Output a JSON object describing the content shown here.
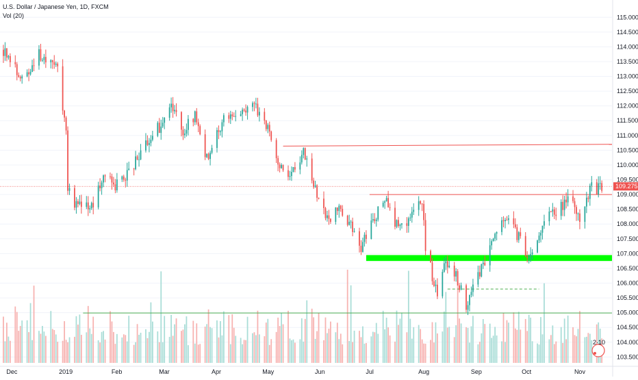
{
  "header": {
    "symbol_line": "U.S. Dollar / Japanese Yen, 1D, FXCM",
    "volume_line": "Vol (20)"
  },
  "colors": {
    "up": "#26a69a",
    "down": "#ef5350",
    "up_volume": "#a9ddd7",
    "down_volume": "#f7b2b0",
    "resistance_line": "#ef5350",
    "support_zone": "#00ff00",
    "dashed_support": "#4caf50",
    "volume_threshold": "#4caf50",
    "last_price": "#ef5350",
    "grid": "#f0f3fa",
    "axis_text": "#131722"
  },
  "chart_data": {
    "type": "candlestick",
    "title": "U.S. Dollar / Japanese Yen, 1D, FXCM",
    "indicator": "Vol (20)",
    "x_labels": [
      "Dec",
      "2019",
      "Feb",
      "Mar",
      "Apr",
      "May",
      "Jun",
      "Jul",
      "Aug",
      "Sep",
      "Oct",
      "Nov"
    ],
    "x_range": [
      "2018-11-24",
      "2019-11-20"
    ],
    "y_ticks": [
      "115.000",
      "114.500",
      "114.000",
      "113.500",
      "113.000",
      "112.500",
      "112.000",
      "111.500",
      "111.000",
      "110.500",
      "110.000",
      "109.500",
      "109.000",
      "108.500",
      "108.000",
      "107.500",
      "107.000",
      "106.500",
      "106.000",
      "105.500",
      "105.000",
      "104.500",
      "104.000",
      "103.500"
    ],
    "ylim": [
      103.3,
      115.4
    ],
    "last_price": "109.275",
    "last_price_value": 109.275,
    "anchors": [
      [
        "2018-11-24",
        114.05
      ],
      [
        "2018-11-30",
        113.6
      ],
      [
        "2018-12-06",
        113.0
      ],
      [
        "2018-12-12",
        113.3
      ],
      [
        "2018-12-16",
        113.8
      ],
      [
        "2018-12-22",
        113.3
      ],
      [
        "2018-12-27",
        113.6
      ],
      [
        "2019-01-02",
        111.0
      ],
      [
        "2019-01-03",
        109.3
      ],
      [
        "2019-01-08",
        108.6
      ],
      [
        "2019-01-16",
        108.5
      ],
      [
        "2019-01-25",
        109.6
      ],
      [
        "2019-01-31",
        109.3
      ],
      [
        "2019-02-05",
        109.5
      ],
      [
        "2019-02-20",
        110.8
      ],
      [
        "2019-03-05",
        111.9
      ],
      [
        "2019-03-12",
        111.2
      ],
      [
        "2019-03-19",
        111.6
      ],
      [
        "2019-03-26",
        110.2
      ],
      [
        "2019-04-05",
        111.5
      ],
      [
        "2019-04-15",
        111.9
      ],
      [
        "2019-04-24",
        112.0
      ],
      [
        "2019-04-30",
        111.3
      ],
      [
        "2019-05-07",
        110.2
      ],
      [
        "2019-05-14",
        109.5
      ],
      [
        "2019-05-22",
        110.4
      ],
      [
        "2019-05-27",
        109.5
      ],
      [
        "2019-06-04",
        108.2
      ],
      [
        "2019-06-14",
        108.5
      ],
      [
        "2019-06-25",
        107.2
      ],
      [
        "2019-07-01",
        108.1
      ],
      [
        "2019-07-09",
        108.8
      ],
      [
        "2019-07-16",
        108.0
      ],
      [
        "2019-07-24",
        108.2
      ],
      [
        "2019-07-31",
        108.8
      ],
      [
        "2019-08-02",
        107.2
      ],
      [
        "2019-08-09",
        105.6
      ],
      [
        "2019-08-13",
        106.6
      ],
      [
        "2019-08-20",
        106.3
      ],
      [
        "2019-08-26",
        105.2
      ],
      [
        "2019-09-01",
        106.2
      ],
      [
        "2019-09-10",
        107.3
      ],
      [
        "2019-09-19",
        108.3
      ],
      [
        "2019-09-26",
        107.5
      ],
      [
        "2019-10-03",
        106.8
      ],
      [
        "2019-10-14",
        108.4
      ],
      [
        "2019-10-22",
        108.6
      ],
      [
        "2019-10-28",
        108.9
      ],
      [
        "2019-11-01",
        108.2
      ],
      [
        "2019-11-07",
        109.2
      ],
      [
        "2019-11-14",
        109.2
      ]
    ],
    "volume_threshold": 104.99,
    "annotations": [
      {
        "name": "resistance-line-upper",
        "kind": "line",
        "x1": "2019-05-10",
        "x2": "2019-11-20",
        "y1": 110.64,
        "y2": 110.7
      },
      {
        "name": "resistance-line-lower",
        "kind": "line",
        "x1": "2019-06-30",
        "x2": "2019-11-20",
        "y1": 109.0,
        "y2": 109.0
      },
      {
        "name": "support-zone",
        "kind": "zone",
        "x1": "2019-06-28",
        "x2": "2019-11-20",
        "y_top": 106.95,
        "y_bottom": 106.75
      },
      {
        "name": "dashed-support-line",
        "kind": "dashed",
        "x1": "2019-08-15",
        "x2": "2019-10-08",
        "y1": 105.8,
        "y2": 105.8
      },
      {
        "name": "volume-threshold-line",
        "kind": "line",
        "x1": "2019-01-12",
        "x2": "2019-11-20",
        "y1": 104.99,
        "y2": 104.99
      }
    ],
    "grid": true,
    "legend_placement": "top-left"
  },
  "widget": {
    "small_label": "2·10"
  }
}
